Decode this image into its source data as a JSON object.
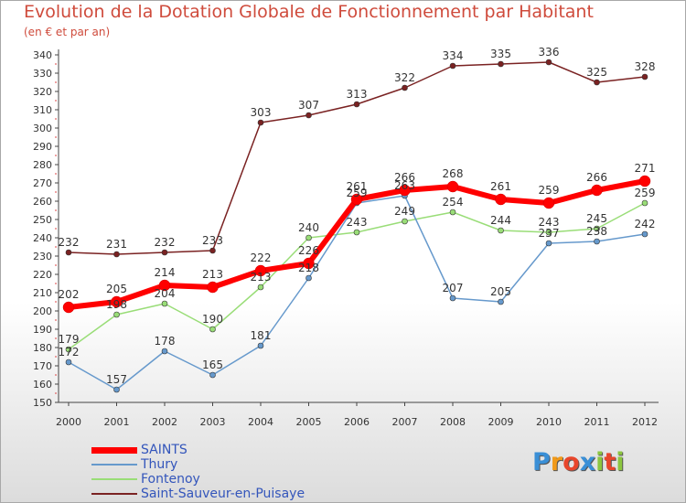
{
  "header": {
    "title": "Evolution de la Dotation Globale de Fonctionnement par Habitant",
    "subtitle": "(en € et par an)"
  },
  "chart_data": {
    "type": "line",
    "title": "Evolution de la Dotation Globale de Fonctionnement par Habitant",
    "subtitle": "(en € et par an)",
    "xlabel": "",
    "ylabel": "",
    "ylim": [
      150,
      340
    ],
    "yticks": [
      150,
      160,
      170,
      180,
      190,
      200,
      210,
      220,
      230,
      240,
      250,
      260,
      270,
      280,
      290,
      300,
      310,
      320,
      330,
      340
    ],
    "categories": [
      "2000",
      "2001",
      "2002",
      "2003",
      "2004",
      "2005",
      "2006",
      "2007",
      "2008",
      "2009",
      "2010",
      "2011",
      "2012"
    ],
    "grid": false,
    "legend_position": "bottom-left",
    "series": [
      {
        "name": "Saint-Sauveur-en-Puisaye",
        "color": "#7a2222",
        "values": [
          232,
          231,
          232,
          233,
          303,
          307,
          313,
          322,
          334,
          335,
          336,
          325,
          328
        ]
      },
      {
        "name": "Fontenoy",
        "color": "#99dd77",
        "values": [
          179,
          198,
          204,
          190,
          213,
          240,
          243,
          249,
          254,
          244,
          243,
          245,
          259
        ]
      },
      {
        "name": "Thury",
        "color": "#6699cc",
        "values": [
          172,
          157,
          178,
          165,
          181,
          218,
          259,
          263,
          207,
          205,
          237,
          238,
          242
        ]
      },
      {
        "name": "SAINTS",
        "color": "#ff0000",
        "values": [
          202,
          205,
          214,
          213,
          222,
          226,
          261,
          266,
          268,
          261,
          259,
          266,
          271
        ]
      }
    ]
  },
  "legend": {
    "items": [
      {
        "label": "SAINTS",
        "color": "#ff0000"
      },
      {
        "label": "Thury",
        "color": "#6699cc"
      },
      {
        "label": "Fontenoy",
        "color": "#99dd77"
      },
      {
        "label": "Saint-Sauveur-en-Puisaye",
        "color": "#7a2222"
      }
    ]
  },
  "logo": {
    "letters": [
      "P",
      "r",
      "o",
      "x",
      "i",
      "t",
      "i"
    ],
    "colors": [
      "#3a8fd6",
      "#f19a1a",
      "#e8462b",
      "#3a8fd6",
      "#8cc63f",
      "#e8462b",
      "#8cc63f"
    ]
  }
}
